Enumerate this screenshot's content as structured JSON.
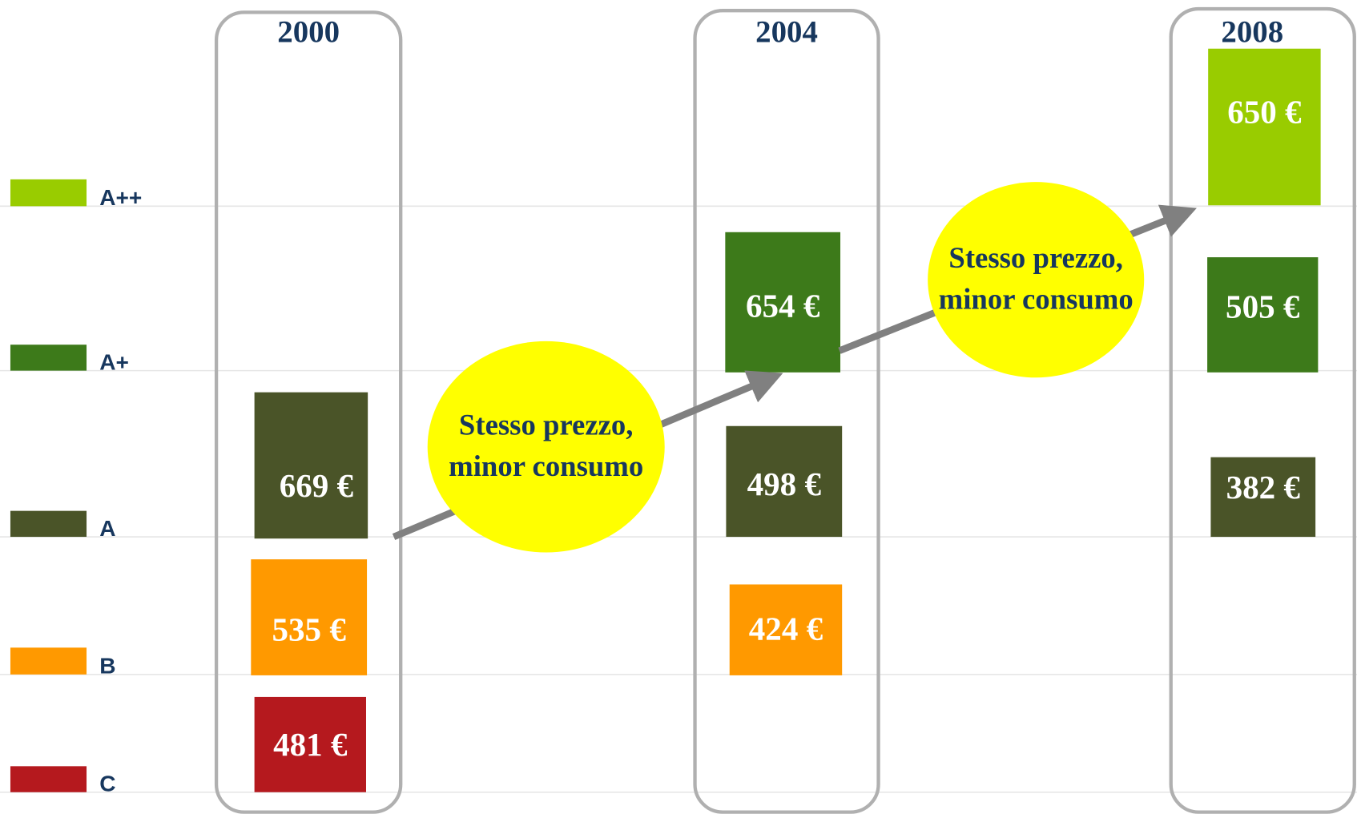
{
  "legend": [
    {
      "label": "A++",
      "color": "#99cc00"
    },
    {
      "label": "A+",
      "color": "#3d7a1a"
    },
    {
      "label": "A",
      "color": "#4a5428"
    },
    {
      "label": "B",
      "color": "#ff9900"
    },
    {
      "label": "C",
      "color": "#b5191e"
    }
  ],
  "columns": [
    {
      "year": "2000",
      "items": [
        {
          "class": "A",
          "label": "669 €"
        },
        {
          "class": "B",
          "label": "535 €"
        },
        {
          "class": "C",
          "label": "481 €"
        }
      ]
    },
    {
      "year": "2004",
      "items": [
        {
          "class": "A+",
          "label": "654 €"
        },
        {
          "class": "A",
          "label": "498 €"
        },
        {
          "class": "B",
          "label": "424 €"
        }
      ]
    },
    {
      "year": "2008",
      "items": [
        {
          "class": "A++",
          "label": "650 €"
        },
        {
          "class": "A+",
          "label": "505 €"
        },
        {
          "class": "A",
          "label": "382 €"
        }
      ]
    }
  ],
  "callouts": [
    {
      "lines": [
        "Stesso prezzo,",
        "minor consumo"
      ]
    },
    {
      "lines": [
        "Stesso prezzo,",
        "minor consumo"
      ]
    }
  ]
}
